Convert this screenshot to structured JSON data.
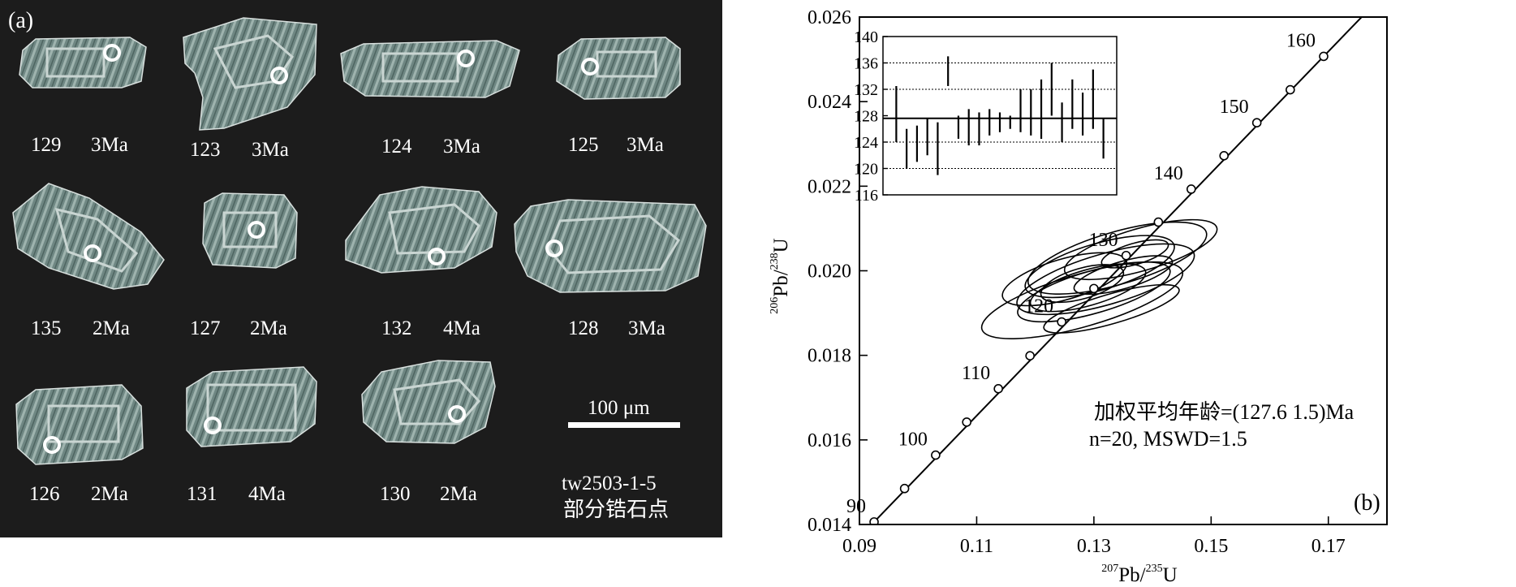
{
  "panel_a": {
    "label": "(a)",
    "scale_label": "100 μm",
    "sample_line1": "tw2503-1-5",
    "sample_line2": "部分锆石点",
    "grains": [
      {
        "id": "129",
        "age": "3Ma"
      },
      {
        "id": "123",
        "age": "3Ma"
      },
      {
        "id": "124",
        "age": "3Ma"
      },
      {
        "id": "125",
        "age": "3Ma"
      },
      {
        "id": "135",
        "age": "2Ma"
      },
      {
        "id": "127",
        "age": "2Ma"
      },
      {
        "id": "132",
        "age": "4Ma"
      },
      {
        "id": "128",
        "age": "3Ma"
      },
      {
        "id": "126",
        "age": "2Ma"
      },
      {
        "id": "131",
        "age": "4Ma"
      },
      {
        "id": "130",
        "age": "2Ma"
      }
    ]
  },
  "chart_data": {
    "type": "scatter",
    "panel_label": "(b)",
    "x_label_sup": "207",
    "x_label_main": "Pb/",
    "x_label_sup2": "235",
    "x_label_end": "U",
    "y_label_sup": "206",
    "y_label_main": "Pb/",
    "y_label_sup2": "238",
    "y_label_end": "U",
    "xlim": [
      0.09,
      0.18
    ],
    "ylim": [
      0.014,
      0.026
    ],
    "x_ticks": [
      "0.09",
      "0.11",
      "0.13",
      "0.15",
      "0.17"
    ],
    "x_tick_values": [
      0.09,
      0.11,
      0.13,
      0.15,
      0.17
    ],
    "y_ticks": [
      "0.014",
      "0.016",
      "0.018",
      "0.020",
      "0.022",
      "0.024",
      "0.026"
    ],
    "y_tick_values": [
      0.014,
      0.016,
      0.018,
      0.02,
      0.022,
      0.024,
      0.026
    ],
    "concordia": [
      {
        "age": 90,
        "x": 0.0925,
        "y": 0.01406,
        "label": "90"
      },
      {
        "age": 95,
        "x": 0.0977,
        "y": 0.01485,
        "label": ""
      },
      {
        "age": 100,
        "x": 0.103,
        "y": 0.01564,
        "label": "100"
      },
      {
        "age": 105,
        "x": 0.1083,
        "y": 0.01642,
        "label": ""
      },
      {
        "age": 110,
        "x": 0.1137,
        "y": 0.01721,
        "label": "110"
      },
      {
        "age": 115,
        "x": 0.1191,
        "y": 0.01799,
        "label": ""
      },
      {
        "age": 120,
        "x": 0.1245,
        "y": 0.01879,
        "label": "120"
      },
      {
        "age": 125,
        "x": 0.13,
        "y": 0.01958,
        "label": ""
      },
      {
        "age": 130,
        "x": 0.1355,
        "y": 0.02036,
        "label": "130"
      },
      {
        "age": 135,
        "x": 0.141,
        "y": 0.02115,
        "label": ""
      },
      {
        "age": 140,
        "x": 0.1466,
        "y": 0.02193,
        "label": "140"
      },
      {
        "age": 145,
        "x": 0.1522,
        "y": 0.02272,
        "label": ""
      },
      {
        "age": 150,
        "x": 0.1578,
        "y": 0.0235,
        "label": "150"
      },
      {
        "age": 155,
        "x": 0.1635,
        "y": 0.02428,
        "label": ""
      },
      {
        "age": 160,
        "x": 0.1692,
        "y": 0.02507,
        "label": "160"
      }
    ],
    "ellipses": [
      {
        "cx": 0.134,
        "cy": 0.0203,
        "rx": 0.0158,
        "ry": 0.00062
      },
      {
        "cx": 0.131,
        "cy": 0.0201,
        "rx": 0.0132,
        "ry": 0.00055
      },
      {
        "cx": 0.132,
        "cy": 0.0198,
        "rx": 0.0157,
        "ry": 0.0006
      },
      {
        "cx": 0.13,
        "cy": 0.0195,
        "rx": 0.0135,
        "ry": 0.0005
      },
      {
        "cx": 0.128,
        "cy": 0.0193,
        "rx": 0.0178,
        "ry": 0.00062
      },
      {
        "cx": 0.129,
        "cy": 0.0196,
        "rx": 0.0102,
        "ry": 0.00042
      },
      {
        "cx": 0.135,
        "cy": 0.0199,
        "rx": 0.0087,
        "ry": 0.00032
      },
      {
        "cx": 0.137,
        "cy": 0.0204,
        "rx": 0.0059,
        "ry": 0.00025
      },
      {
        "cx": 0.133,
        "cy": 0.0191,
        "rx": 0.012,
        "ry": 0.00035
      },
      {
        "cx": 0.128,
        "cy": 0.0197,
        "rx": 0.0073,
        "ry": 0.00036
      },
      {
        "cx": 0.125,
        "cy": 0.0198,
        "rx": 0.011,
        "ry": 0.00048
      },
      {
        "cx": 0.138,
        "cy": 0.0205,
        "rx": 0.0135,
        "ry": 0.0005
      }
    ],
    "annotation_line1": "加权平均年龄=(127.6  1.5)Ma",
    "annotation_line2": "n=20, MSWD=1.5",
    "inset": {
      "ylim": [
        116,
        140
      ],
      "y_ticks": [
        "140",
        "136",
        "132",
        "128",
        "124",
        "120",
        "116"
      ],
      "y_tick_values": [
        140,
        136,
        132,
        128,
        124,
        120,
        116
      ],
      "dotted_lines": [
        136,
        132,
        124,
        120
      ],
      "mean": 127.6,
      "bars": [
        {
          "lo": 124,
          "hi": 132.5
        },
        {
          "lo": 120,
          "hi": 126
        },
        {
          "lo": 121,
          "hi": 126.5
        },
        {
          "lo": 122,
          "hi": 127.5
        },
        {
          "lo": 119,
          "hi": 127
        },
        {
          "lo": 132.5,
          "hi": 137
        },
        {
          "lo": 124.5,
          "hi": 128
        },
        {
          "lo": 123.5,
          "hi": 129
        },
        {
          "lo": 123.5,
          "hi": 128.5
        },
        {
          "lo": 125,
          "hi": 129
        },
        {
          "lo": 125.5,
          "hi": 128.5
        },
        {
          "lo": 126,
          "hi": 128
        },
        {
          "lo": 125.5,
          "hi": 132
        },
        {
          "lo": 125,
          "hi": 132
        },
        {
          "lo": 124.5,
          "hi": 133.5
        },
        {
          "lo": 128,
          "hi": 136
        },
        {
          "lo": 124,
          "hi": 130
        },
        {
          "lo": 126,
          "hi": 133.5
        },
        {
          "lo": 125,
          "hi": 131.5
        },
        {
          "lo": 126,
          "hi": 135
        },
        {
          "lo": 121.5,
          "hi": 127.5
        }
      ]
    }
  },
  "colors": {
    "panel_a_background": "#1c1c1c",
    "grain_fill": "#778e8a",
    "spot_marker": "#ffffff",
    "chart_stroke": "#000000"
  }
}
